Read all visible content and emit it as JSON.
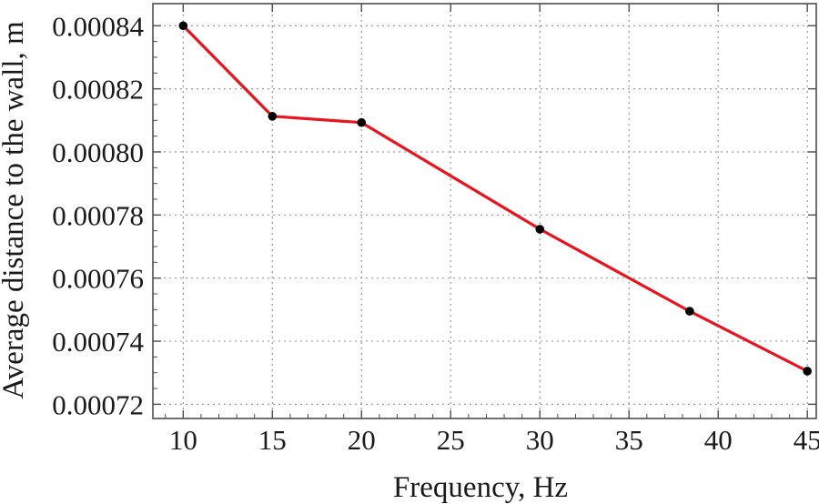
{
  "chart_data": {
    "type": "line",
    "title": "",
    "xlabel": "Frequency, Hz",
    "ylabel": "Average distance to the wall, m",
    "x": [
      10,
      15,
      20,
      30,
      38.4,
      45
    ],
    "series": [
      {
        "values": [
          0.00084,
          0.0008113,
          0.0008093,
          0.0007755,
          0.0007495,
          0.0007305
        ]
      }
    ],
    "xlim": [
      8.3,
      45.5
    ],
    "ylim": [
      0.0007155,
      0.000847
    ],
    "xticks": [
      10,
      15,
      20,
      25,
      30,
      35,
      40,
      45
    ],
    "yticks": [
      0.00072,
      0.00074,
      0.00076,
      0.00078,
      0.0008,
      0.00082,
      0.00084
    ],
    "x_tick_labels": [
      "10",
      "15",
      "20",
      "25",
      "30",
      "35",
      "40",
      "45"
    ],
    "y_tick_labels": [
      "0.00072",
      "0.00074",
      "0.00076",
      "0.00078",
      "0.00080",
      "0.00082",
      "0.00084"
    ],
    "grid": true,
    "legend": "none",
    "line_color": "#e8141e",
    "marker_color": "#000000"
  }
}
